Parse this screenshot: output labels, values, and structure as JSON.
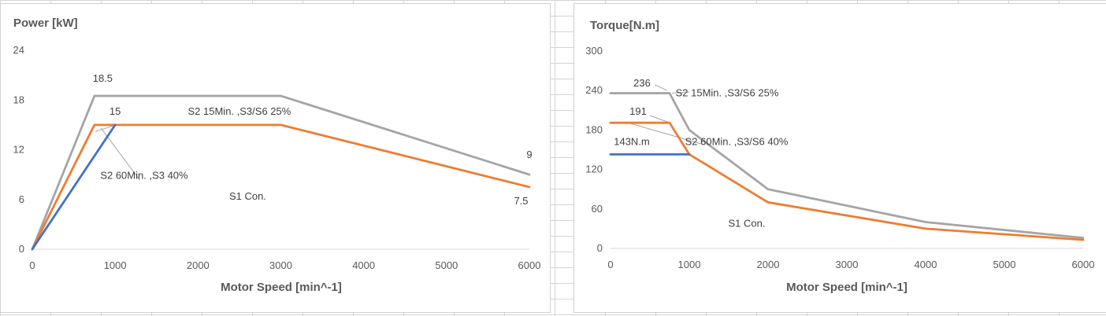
{
  "chart_data": [
    {
      "type": "line",
      "ylabel": "Power [kW]",
      "xlabel": "Motor Speed [min^-1]",
      "xlim": [
        0,
        6000
      ],
      "ylim": [
        0,
        24
      ],
      "x_ticks": [
        "0",
        "1000",
        "2000",
        "3000",
        "4000",
        "5000",
        "6000"
      ],
      "y_ticks": [
        "0",
        "6",
        "12",
        "18",
        "24"
      ],
      "series": [
        {
          "color": "#a5a5a5",
          "points": [
            [
              0,
              0
            ],
            [
              750,
              18.5
            ],
            [
              3000,
              18.5
            ],
            [
              6000,
              9
            ]
          ]
        },
        {
          "color": "#ed7d31",
          "points": [
            [
              0,
              0
            ],
            [
              750,
              15
            ],
            [
              3000,
              15
            ],
            [
              6000,
              7.5
            ]
          ]
        },
        {
          "color": "#4472c4",
          "points": [
            [
              0,
              0
            ],
            [
              1000,
              15
            ]
          ]
        }
      ],
      "leader_color": "#a5a5a5",
      "annotations": [
        {
          "text": "18.5",
          "x": 850,
          "y": 20.2
        },
        {
          "text": "15",
          "x": 1000,
          "y": 16.2
        },
        {
          "text": "S2 15Min. ,S3/S6 25%",
          "x": 2500,
          "y": 16.2
        },
        {
          "text": "S2 60Min. ,S3 40%",
          "x": 1350,
          "y": 8.5
        },
        {
          "text": "S1 Con.",
          "x": 2600,
          "y": 6.0
        },
        {
          "text": "9",
          "x": 6000,
          "y": 11.0
        },
        {
          "text": "7.5",
          "x": 5900,
          "y": 5.4
        }
      ]
    },
    {
      "type": "line",
      "ylabel": "Torque[N.m]",
      "xlabel": "Motor Speed [min^-1]",
      "xlim": [
        0,
        6000
      ],
      "ylim": [
        0,
        300
      ],
      "x_ticks": [
        "0",
        "1000",
        "2000",
        "3000",
        "4000",
        "5000",
        "6000"
      ],
      "y_ticks": [
        "0",
        "60",
        "120",
        "180",
        "240",
        "300"
      ],
      "series": [
        {
          "color": "#a5a5a5",
          "points": [
            [
              0,
              236
            ],
            [
              750,
              236
            ],
            [
              1000,
              180
            ],
            [
              2000,
              90
            ],
            [
              4000,
              40
            ],
            [
              6000,
              16
            ]
          ]
        },
        {
          "color": "#ed7d31",
          "points": [
            [
              0,
              191
            ],
            [
              750,
              191
            ],
            [
              1000,
              143
            ],
            [
              2000,
              70
            ],
            [
              4000,
              30
            ],
            [
              6000,
              13
            ]
          ]
        },
        {
          "color": "#4472c4",
          "points": [
            [
              0,
              143
            ],
            [
              1000,
              143
            ]
          ]
        }
      ],
      "leader_color": "#a5a5a5",
      "annotations": [
        {
          "text": "236",
          "x": 400,
          "y": 246
        },
        {
          "text": "S2 15Min. ,S3/S6 25%",
          "x": 1480,
          "y": 231
        },
        {
          "text": "191",
          "x": 350,
          "y": 203
        },
        {
          "text": "S2 60Min. ,S3/S6 40%",
          "x": 1600,
          "y": 157
        },
        {
          "text": "143N.m",
          "x": 270,
          "y": 157
        },
        {
          "text": "S1 Con.",
          "x": 1730,
          "y": 33
        }
      ]
    }
  ]
}
